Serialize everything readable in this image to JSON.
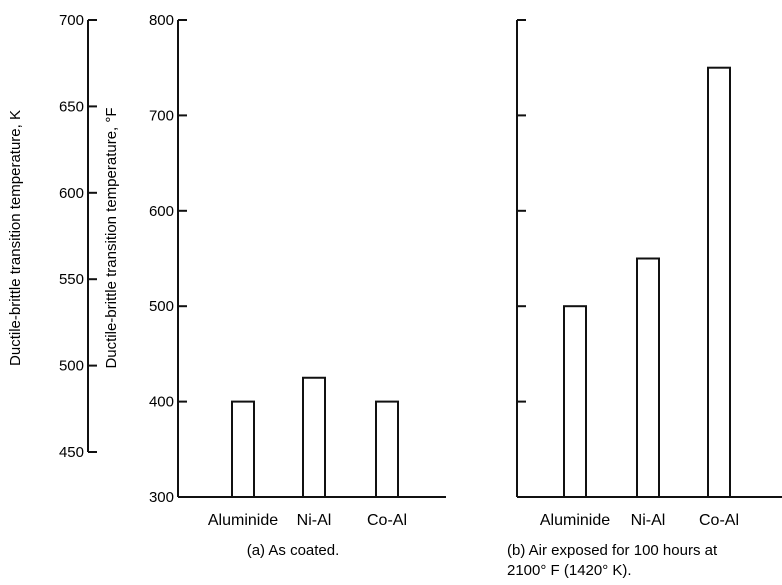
{
  "chart_data": [
    {
      "type": "bar",
      "categories": [
        "Aluminide",
        "Ni-Al",
        "Co-Al"
      ],
      "values": [
        400,
        425,
        400
      ],
      "ylim": [
        300,
        800
      ],
      "yticks": [
        "300",
        "400",
        "500",
        "600",
        "700",
        "800"
      ],
      "ylabel": "Ductile-brittle transition temperature, °F",
      "secondary_axis": {
        "ylim": [
          450,
          700
        ],
        "yticks": [
          "450",
          "500",
          "550",
          "600",
          "650",
          "700"
        ],
        "ylabel": "Ductile-brittle transition temperature, K"
      },
      "caption": "(a) As coated."
    },
    {
      "type": "bar",
      "categories": [
        "Aluminide",
        "Ni-Al",
        "Co-Al"
      ],
      "values": [
        500,
        550,
        750
      ],
      "ylim": [
        300,
        800
      ],
      "caption_line1": "(b) Air exposed for 100 hours at",
      "caption_line2": "2100° F (1420° K)."
    }
  ]
}
